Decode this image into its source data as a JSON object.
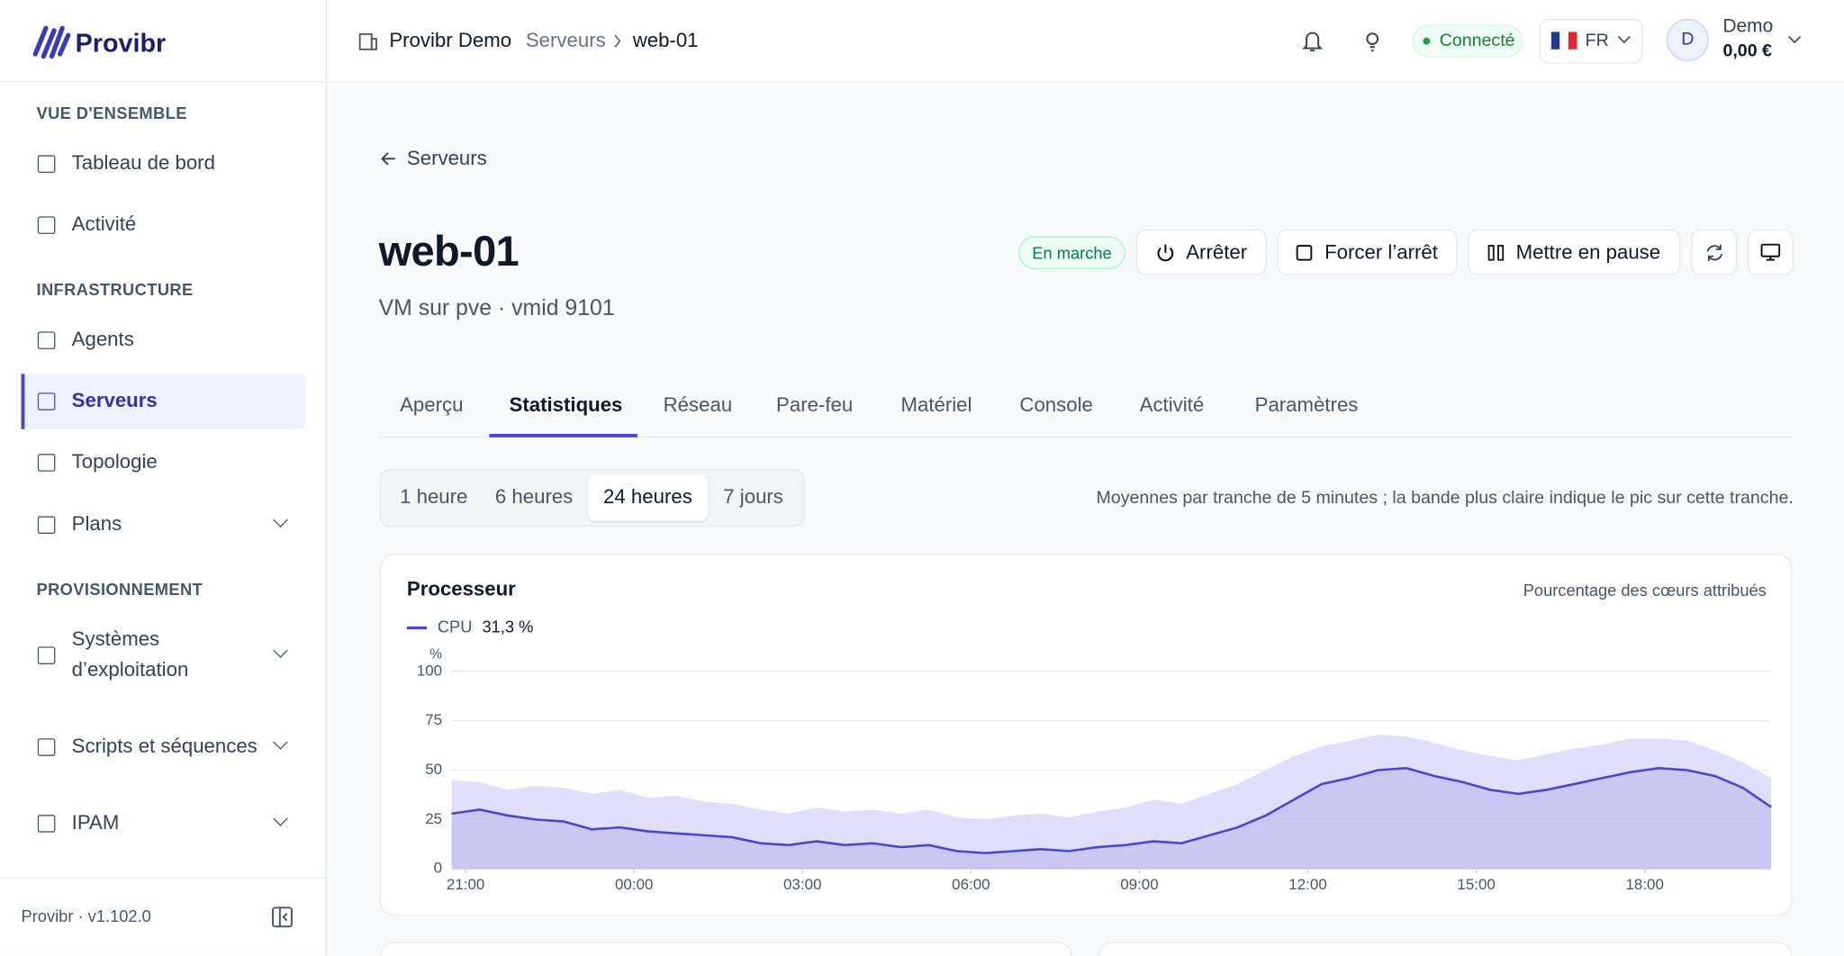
{
  "header": {
    "brand": "Provibr",
    "breadcrumb": [
      "Provibr Demo",
      "Serveurs",
      "web-01"
    ],
    "status": "Connecté",
    "language": "FR",
    "user": {
      "initial": "D",
      "name": "Demo",
      "balance": "0,00 €"
    }
  },
  "sidebar": {
    "sections": [
      {
        "title": "VUE D'ENSEMBLE",
        "items": [
          "Tableau de bord",
          "Activité"
        ]
      },
      {
        "title": "INFRASTRUCTURE",
        "items": [
          "Agents",
          "Serveurs",
          "Topologie",
          "Plans"
        ]
      },
      {
        "title": "PROVISIONNEMENT",
        "items": [
          "Systèmes d’exploitation",
          "Scripts et séquences",
          "IPAM"
        ]
      }
    ],
    "footer": "Provibr · v1.102.0"
  },
  "page": {
    "back": "Serveurs",
    "title": "web-01",
    "subtitle": "VM sur pve · vmid 9101",
    "state": "En marche",
    "actions": [
      "Arrêter",
      "Forcer l’arrêt",
      "Mettre en pause"
    ],
    "tabs": [
      "Aperçu",
      "Statistiques",
      "Réseau",
      "Pare-feu",
      "Matériel",
      "Console",
      "Activité",
      "Paramètres"
    ],
    "ranges": [
      "1 heure",
      "6 heures",
      "24 heures",
      "7 jours"
    ],
    "note": "Moyennes par tranche de 5 minutes ; la bande plus claire indique le pic sur cette tranche."
  },
  "chart_data": {
    "type": "line",
    "title": "Processeur",
    "subtitle": "Pourcentage des cœurs attribués",
    "y_label": "%",
    "x": [
      "20:45",
      "21:15",
      "21:45",
      "22:15",
      "22:45",
      "23:15",
      "23:45",
      "00:15",
      "00:45",
      "01:15",
      "01:45",
      "02:15",
      "02:45",
      "03:15",
      "03:45",
      "04:15",
      "04:45",
      "05:15",
      "05:45",
      "06:15",
      "06:45",
      "07:15",
      "07:45",
      "08:15",
      "08:45",
      "09:15",
      "09:45",
      "10:15",
      "10:45",
      "11:15",
      "11:45",
      "12:15",
      "12:45",
      "13:15",
      "13:45",
      "14:15",
      "14:45",
      "15:15",
      "15:45",
      "16:15",
      "16:45",
      "17:15",
      "17:45",
      "18:15",
      "18:45",
      "19:15",
      "19:45",
      "20:15"
    ],
    "series": [
      {
        "name": "CPU",
        "summary": "31,3 %",
        "color": "#4f46c8",
        "values": [
          28,
          30,
          27,
          25,
          24,
          20,
          21,
          19,
          18,
          17,
          16,
          13,
          12,
          14,
          12,
          13,
          11,
          12,
          9,
          8,
          9,
          10,
          9,
          11,
          12,
          14,
          13,
          17,
          21,
          27,
          35,
          43,
          46,
          50,
          51,
          47,
          44,
          40,
          38,
          40,
          43,
          46,
          49,
          51,
          50,
          47,
          41,
          31.3
        ]
      },
      {
        "color": "#dcd8fa",
        "values": [
          45,
          44,
          40,
          42,
          41,
          38,
          40,
          36,
          37,
          34,
          33,
          30,
          28,
          31,
          29,
          30,
          28,
          30,
          26,
          25,
          27,
          28,
          26,
          29,
          31,
          35,
          33,
          38,
          43,
          50,
          57,
          62,
          65,
          68,
          67,
          64,
          60,
          57,
          55,
          58,
          61,
          63,
          66,
          66,
          65,
          60,
          54,
          46
        ]
      }
    ],
    "xlim": [
      "20:45",
      "20:15"
    ],
    "xticks": [
      "21:00",
      "00:00",
      "03:00",
      "06:00",
      "09:00",
      "12:00",
      "15:00",
      "18:00"
    ],
    "ylim": [
      0,
      100
    ],
    "yticks": [
      0,
      25,
      50,
      75,
      100
    ],
    "grid": true
  }
}
